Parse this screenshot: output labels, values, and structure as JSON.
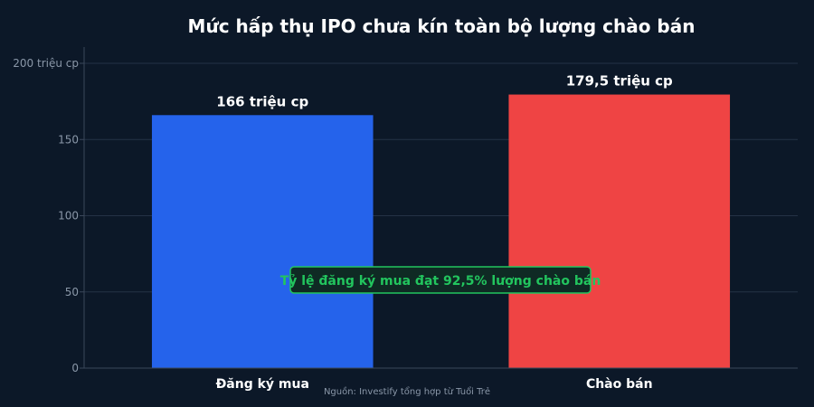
{
  "chart_data": {
    "type": "bar",
    "title": "Mức hấp thụ IPO chưa kín toàn bộ lượng chào bán",
    "categories": [
      "Đăng ký mua",
      "Chào bán"
    ],
    "values": [
      166,
      179.5
    ],
    "data_labels": [
      "166 triệu cp",
      "179,5 triệu cp"
    ],
    "colors": [
      "#2563eb",
      "#ef4444"
    ],
    "ylim": [
      0,
      200
    ],
    "yticks": [
      0,
      50,
      100,
      150,
      200
    ],
    "ytick_labels": [
      "0",
      "50",
      "100",
      "150",
      "200 triệu cp"
    ],
    "grid": true,
    "annotation": "Tỷ lệ đăng ký mua đạt 92,5% lượng chào bán",
    "annotation_color": "#22c55e",
    "source": "Nguồn: Investify tổng hợp từ Tuổi Trẻ"
  }
}
